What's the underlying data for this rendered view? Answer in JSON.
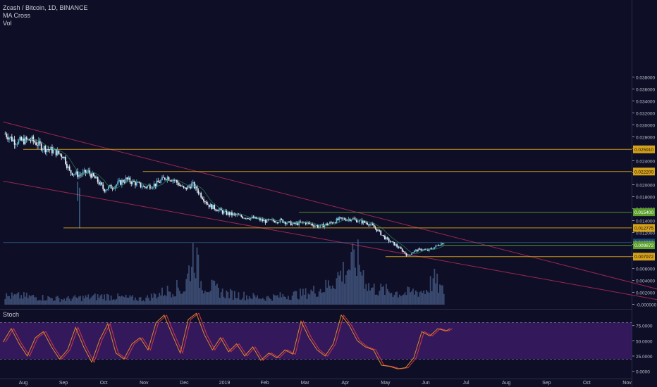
{
  "legend": {
    "symbol": "Zcash / Bitcoin, 1D, BINANCE",
    "indicator1": "MA Cross",
    "indicator2": "Vol"
  },
  "stoch_label": "Stoch",
  "colors": {
    "background": "#0e0f26",
    "up": "#5fb4d8",
    "down": "#e8ecf2",
    "volume": "#4a5f8a",
    "trendline": "#b5295a",
    "hline_gold": "#d6a21c",
    "hline_green": "#5b9e2a",
    "stoch_fill": "#3a1a66",
    "stoch_k": "#d98c28",
    "stoch_d": "#c8324a",
    "current_price_line": "#3a7fb0"
  },
  "chart_data": [
    {
      "type": "candlestick",
      "title": "Zcash / Bitcoin, 1D, BINANCE",
      "x_ticks": [
        "Aug",
        "Sep",
        "Oct",
        "Nov",
        "Dec",
        "2019",
        "Feb",
        "Mar",
        "Apr",
        "May",
        "Jun",
        "Jul",
        "Aug",
        "Sep",
        "Oct",
        "Nov"
      ],
      "y_ticks": [
        "0.038000",
        "0.036000",
        "0.034000",
        "0.032000",
        "0.030000",
        "0.028000",
        "0.026000",
        "0.024000",
        "0.022000",
        "0.020000",
        "0.018000",
        "0.016000",
        "0.014000",
        "0.012000",
        "0.010000",
        "0.008000",
        "0.006000",
        "0.004000",
        "0.002000",
        "-0.000000"
      ],
      "ylim": [
        -0.0004,
        0.0394
      ],
      "price_labels": [
        {
          "text": "0.025910",
          "value": 0.02591,
          "kind": "gold"
        },
        {
          "text": "0.022200",
          "value": 0.0222,
          "kind": "gold"
        },
        {
          "text": "0.015400",
          "value": 0.0154,
          "kind": "green"
        },
        {
          "text": "0.012775",
          "value": 0.012775,
          "kind": "gold"
        },
        {
          "text": "0.010326",
          "value": 0.010326,
          "kind": "current"
        },
        {
          "text": "0.009872",
          "value": 0.009872,
          "kind": "green"
        },
        {
          "text": "0.007972",
          "value": 0.007972,
          "kind": "gold"
        }
      ],
      "horizontal_levels": [
        {
          "value": 0.02591,
          "start_month": 0.0,
          "kind": "gold"
        },
        {
          "value": 0.0222,
          "start_month": 2.97,
          "kind": "gold"
        },
        {
          "value": 0.0154,
          "start_month": 6.85,
          "kind": "green"
        },
        {
          "value": 0.012775,
          "start_month": 1.0,
          "kind": "gold"
        },
        {
          "value": 0.009872,
          "start_month": 10.3,
          "kind": "green"
        },
        {
          "value": 0.007972,
          "start_month": 9.0,
          "kind": "gold"
        },
        {
          "value": 0.010326,
          "start_month": -0.5,
          "kind": "current"
        }
      ],
      "trendlines": [
        {
          "from": [
            -0.5,
            0.0305
          ],
          "to": [
            15.9,
            0.0023
          ]
        },
        {
          "from": [
            -0.5,
            0.0206
          ],
          "to": [
            15.9,
            0.0006
          ]
        }
      ],
      "price_path": [
        [
          -0.45,
          0.0285
        ],
        [
          -0.2,
          0.0272
        ],
        [
          0.2,
          0.0275
        ],
        [
          0.5,
          0.0262
        ],
        [
          0.8,
          0.0255
        ],
        [
          1.0,
          0.0248
        ],
        [
          1.15,
          0.0222
        ],
        [
          1.4,
          0.0216
        ],
        [
          1.6,
          0.0222
        ],
        [
          1.85,
          0.0206
        ],
        [
          2.0,
          0.0192
        ],
        [
          2.25,
          0.0198
        ],
        [
          2.55,
          0.0209
        ],
        [
          2.8,
          0.0202
        ],
        [
          3.0,
          0.0196
        ],
        [
          3.3,
          0.0201
        ],
        [
          3.55,
          0.0213
        ],
        [
          3.75,
          0.0208
        ],
        [
          4.0,
          0.0192
        ],
        [
          4.2,
          0.0201
        ],
        [
          4.4,
          0.0184
        ],
        [
          4.6,
          0.0166
        ],
        [
          5.0,
          0.0153
        ],
        [
          5.4,
          0.0147
        ],
        [
          5.8,
          0.0143
        ],
        [
          6.0,
          0.0139
        ],
        [
          6.4,
          0.014
        ],
        [
          6.7,
          0.0134
        ],
        [
          7.0,
          0.0137
        ],
        [
          7.35,
          0.013
        ],
        [
          7.6,
          0.0135
        ],
        [
          7.85,
          0.0142
        ],
        [
          8.15,
          0.0143
        ],
        [
          8.35,
          0.0139
        ],
        [
          8.6,
          0.0135
        ],
        [
          8.8,
          0.0124
        ],
        [
          9.0,
          0.011
        ],
        [
          9.25,
          0.0099
        ],
        [
          9.45,
          0.0088
        ],
        [
          9.55,
          0.0081
        ],
        [
          9.7,
          0.0089
        ],
        [
          9.9,
          0.0092
        ],
        [
          10.05,
          0.009
        ],
        [
          10.2,
          0.0095
        ],
        [
          10.35,
          0.0101
        ],
        [
          10.45,
          0.0103
        ]
      ],
      "volume_profile": [
        [
          0.0,
          0.15
        ],
        [
          1.0,
          0.1
        ],
        [
          2.0,
          0.15
        ],
        [
          3.0,
          0.1
        ],
        [
          3.6,
          0.25
        ],
        [
          3.85,
          0.3
        ],
        [
          4.0,
          0.25
        ],
        [
          4.25,
          1.0
        ],
        [
          4.4,
          0.4
        ],
        [
          5.0,
          0.2
        ],
        [
          6.0,
          0.12
        ],
        [
          7.0,
          0.2
        ],
        [
          7.5,
          0.3
        ],
        [
          8.3,
          0.8
        ],
        [
          8.6,
          0.3
        ],
        [
          9.0,
          0.25
        ],
        [
          9.4,
          0.2
        ],
        [
          10.0,
          0.25
        ],
        [
          10.2,
          0.45
        ],
        [
          10.4,
          0.25
        ]
      ]
    },
    {
      "type": "line",
      "title": "Stoch",
      "y_ticks": [
        "75.0000",
        "50.0000",
        "25.0000",
        "0.0000"
      ],
      "ylim": [
        -5,
        100
      ],
      "band": [
        20,
        80
      ],
      "series": [
        {
          "values": [
            [
              -0.5,
              48
            ],
            [
              -0.3,
              70
            ],
            [
              -0.1,
              45
            ],
            [
              0.1,
              25
            ],
            [
              0.3,
              55
            ],
            [
              0.5,
              65
            ],
            [
              0.7,
              40
            ],
            [
              0.9,
              20
            ],
            [
              1.1,
              35
            ],
            [
              1.3,
              72
            ],
            [
              1.5,
              40
            ],
            [
              1.7,
              15
            ],
            [
              1.9,
              52
            ],
            [
              2.1,
              78
            ],
            [
              2.3,
              30
            ],
            [
              2.5,
              20
            ],
            [
              2.7,
              45
            ],
            [
              2.9,
              55
            ],
            [
              3.1,
              35
            ],
            [
              3.3,
              80
            ],
            [
              3.5,
              92
            ],
            [
              3.7,
              60
            ],
            [
              3.9,
              30
            ],
            [
              4.1,
              85
            ],
            [
              4.3,
              95
            ],
            [
              4.5,
              60
            ],
            [
              4.7,
              35
            ],
            [
              4.9,
              55
            ],
            [
              5.1,
              32
            ],
            [
              5.3,
              45
            ],
            [
              5.5,
              25
            ],
            [
              5.7,
              40
            ],
            [
              5.9,
              18
            ],
            [
              6.1,
              30
            ],
            [
              6.3,
              22
            ],
            [
              6.5,
              35
            ],
            [
              6.7,
              28
            ],
            [
              6.9,
              82
            ],
            [
              7.1,
              55
            ],
            [
              7.3,
              35
            ],
            [
              7.5,
              25
            ],
            [
              7.7,
              45
            ],
            [
              7.9,
              92
            ],
            [
              8.1,
              75
            ],
            [
              8.3,
              50
            ],
            [
              8.5,
              40
            ],
            [
              8.7,
              35
            ],
            [
              8.9,
              10
            ],
            [
              9.1,
              8
            ],
            [
              9.3,
              4
            ],
            [
              9.5,
              6
            ],
            [
              9.7,
              22
            ],
            [
              9.9,
              65
            ],
            [
              10.1,
              58
            ],
            [
              10.3,
              70
            ],
            [
              10.5,
              66
            ],
            [
              10.6,
              70
            ]
          ]
        }
      ]
    }
  ]
}
